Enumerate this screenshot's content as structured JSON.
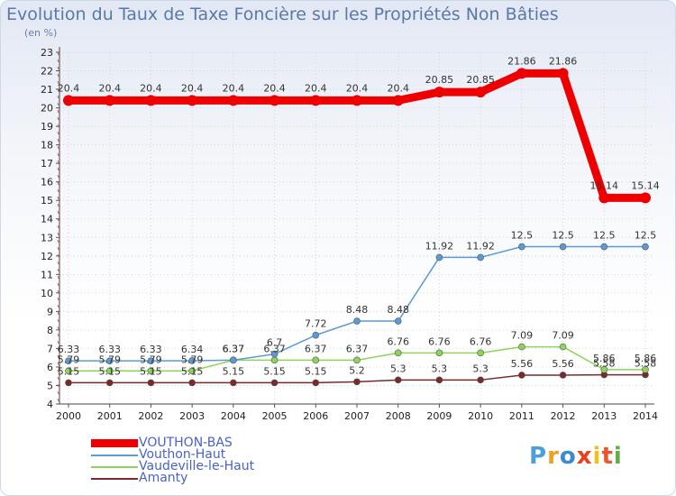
{
  "title": "Evolution du Taux de Taxe Foncière sur les Propriétés Non Bâties",
  "unit_label": "(en %)",
  "logo": {
    "text": "Proxiti",
    "colors": [
      "#4aa0d8",
      "#f0a020",
      "#3a8ad0",
      "#e84020",
      "#f0c020",
      "#e85830",
      "#60b040"
    ]
  },
  "chart_data": {
    "type": "line",
    "title": "Evolution du Taux de Taxe Foncière sur les Propriétés Non Bâties",
    "ylabel": "(en %)",
    "x": [
      "2000",
      "2001",
      "2002",
      "2003",
      "2004",
      "2005",
      "2006",
      "2007",
      "2008",
      "2009",
      "2010",
      "2011",
      "2012",
      "2013",
      "2014"
    ],
    "ylim": [
      4,
      23
    ],
    "yticks": [
      "4",
      "5",
      "6",
      "7",
      "8",
      "9",
      "10",
      "11",
      "12",
      "13",
      "14",
      "15",
      "16",
      "17",
      "18",
      "19",
      "20",
      "21",
      "22",
      "23"
    ],
    "grid": true,
    "legend": "bottom-left",
    "series": [
      {
        "name": "VOUTHON-BAS",
        "color": "#ee0000",
        "values": [
          20.4,
          20.4,
          20.4,
          20.4,
          20.4,
          20.4,
          20.4,
          20.4,
          20.4,
          20.85,
          20.85,
          21.86,
          21.86,
          15.14,
          15.14
        ],
        "labels": [
          "20.4",
          "20.4",
          "20.4",
          "20.4",
          "20.4",
          "20.4",
          "20.4",
          "20.4",
          "20.4",
          "20.85",
          "20.85",
          "21.86",
          "21.86",
          "15.14",
          "15.14"
        ]
      },
      {
        "name": "Vouthon-Haut",
        "color": "#5b9bd5",
        "values": [
          6.33,
          6.33,
          6.33,
          6.34,
          6.37,
          6.7,
          7.72,
          8.48,
          8.48,
          11.92,
          11.92,
          12.5,
          12.5,
          12.5,
          12.5
        ],
        "labels": [
          "6.33",
          "6.33",
          "6.33",
          "6.34",
          "6.37",
          "6.7",
          "7.72",
          "8.48",
          "8.48",
          "11.92",
          "11.92",
          "12.5",
          "12.5",
          "12.5",
          "12.5"
        ]
      },
      {
        "name": "Vaudeville-le-Haut",
        "color": "#8fd45a",
        "values": [
          5.79,
          5.79,
          5.79,
          5.79,
          6.37,
          6.37,
          6.37,
          6.37,
          6.76,
          6.76,
          6.76,
          7.09,
          7.09,
          5.86,
          5.86
        ],
        "labels": [
          "5.79",
          "5.79",
          "5.79",
          "5.79",
          "6.37",
          "6.37",
          "6.37",
          "6.37",
          "6.76",
          "6.76",
          "6.76",
          "7.09",
          "7.09",
          "5.86",
          "5.86"
        ]
      },
      {
        "name": "Amanty",
        "color": "#7a2a2a",
        "values": [
          5.15,
          5.15,
          5.15,
          5.15,
          5.15,
          5.15,
          5.15,
          5.2,
          5.3,
          5.3,
          5.3,
          5.56,
          5.56,
          5.58,
          5.58
        ],
        "labels": [
          "5.15",
          "5.15",
          "5.15",
          "5.15",
          "5.15",
          "5.15",
          "5.15",
          "5.2",
          "5.3",
          "5.3",
          "5.3",
          "5.56",
          "5.56",
          "5.58",
          "5.58"
        ]
      }
    ]
  }
}
